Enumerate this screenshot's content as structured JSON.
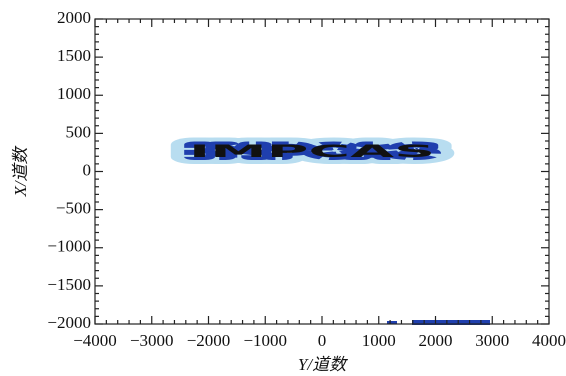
{
  "chart_data": {
    "type": "heatmap-image",
    "xlabel": "Y/道数",
    "ylabel": "X/道数",
    "annotation": "IMPCAS",
    "xlim": [
      -4000,
      4000
    ],
    "xticks": [
      {
        "value": -4000,
        "label": "−4000"
      },
      {
        "value": -3000,
        "label": "−3000"
      },
      {
        "value": -2000,
        "label": "−2000"
      },
      {
        "value": -1000,
        "label": "−1000"
      },
      0,
      1000,
      2000,
      3000,
      4000
    ],
    "ylim": [
      -2000,
      2000
    ],
    "yticks": [
      {
        "value": -2000,
        "label": "−2000"
      },
      {
        "value": -1500,
        "label": "−1500"
      },
      {
        "value": -1000,
        "label": "−1000"
      },
      {
        "value": -500,
        "label": "−500"
      },
      0,
      500,
      1000,
      1500,
      2000
    ],
    "minor_divisions": 5
  }
}
